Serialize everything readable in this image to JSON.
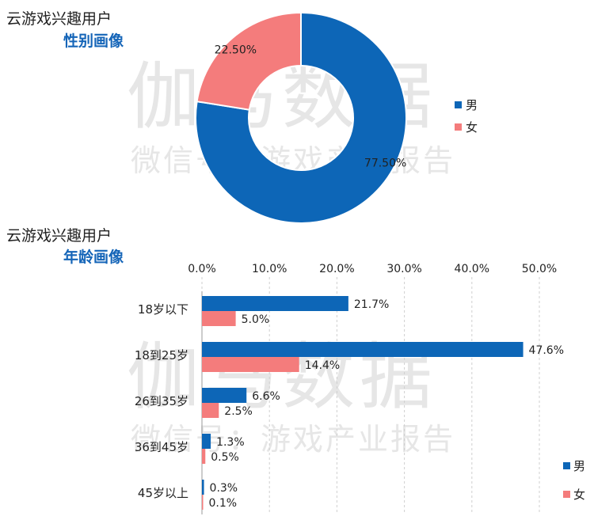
{
  "watermark": {
    "main": "伽马数据",
    "sub": "微信号：游戏产业报告"
  },
  "colors": {
    "male": "#0d66b7",
    "female": "#f47c7c"
  },
  "gender_section": {
    "title": "云游戏兴趣用户",
    "subtitle": "性别画像"
  },
  "age_section": {
    "title": "云游戏兴趣用户",
    "subtitle": "年龄画像"
  },
  "chart_data": [
    {
      "type": "pie",
      "donut": true,
      "categories": [
        "男",
        "女"
      ],
      "values": [
        77.5,
        22.5
      ],
      "labels": [
        "77.50%",
        "22.50%"
      ],
      "legend": [
        "男",
        "女"
      ],
      "legend_position": "right"
    },
    {
      "type": "bar",
      "orientation": "horizontal",
      "categories": [
        "18岁以下",
        "18到25岁",
        "26到35岁",
        "36到45岁",
        "45岁以上"
      ],
      "series": [
        {
          "name": "男",
          "values": [
            21.7,
            47.6,
            6.6,
            1.3,
            0.3
          ],
          "labels": [
            "21.7%",
            "47.6%",
            "6.6%",
            "1.3%",
            "0.3%"
          ]
        },
        {
          "name": "女",
          "values": [
            5.0,
            14.4,
            2.5,
            0.5,
            0.1
          ],
          "labels": [
            "5.0%",
            "14.4%",
            "2.5%",
            "0.5%",
            "0.1%"
          ]
        }
      ],
      "xlim": [
        0,
        50
      ],
      "ticks": [
        "0.0%",
        "10.0%",
        "20.0%",
        "30.0%",
        "40.0%",
        "50.0%"
      ],
      "axis_position": "top",
      "grid": true,
      "legend": [
        "男",
        "女"
      ],
      "legend_position": "bottom-right"
    }
  ]
}
